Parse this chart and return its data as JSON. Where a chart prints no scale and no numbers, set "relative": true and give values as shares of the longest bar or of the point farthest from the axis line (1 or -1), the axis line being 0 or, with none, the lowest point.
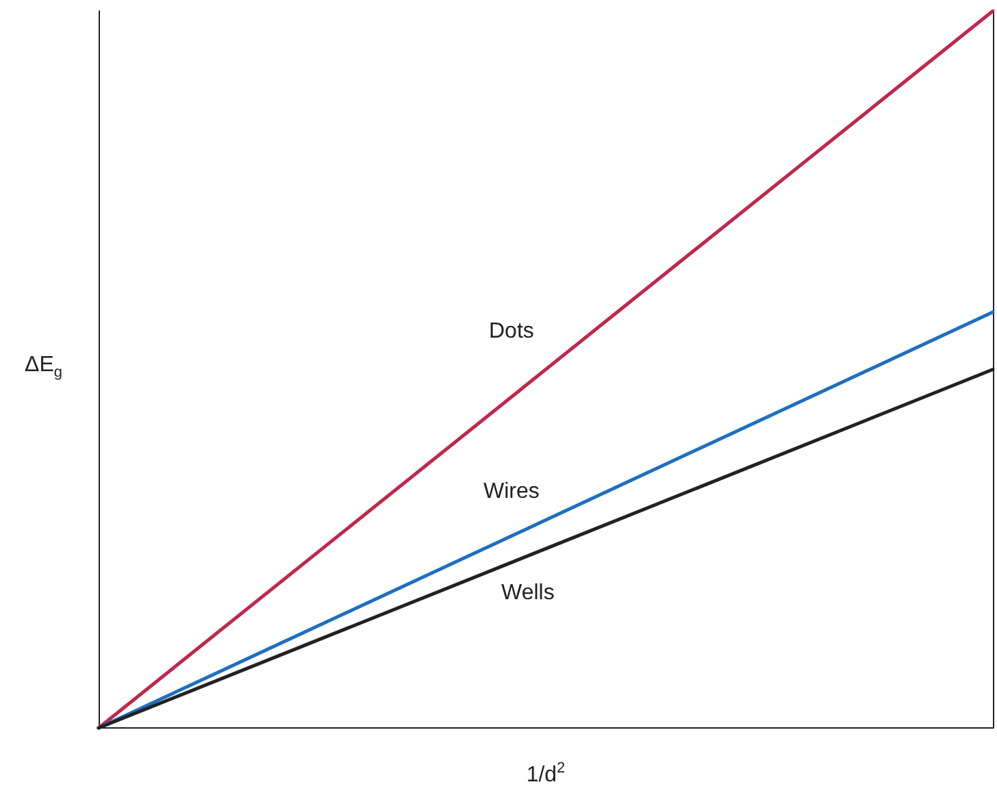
{
  "chart_data": {
    "type": "line",
    "relative": true,
    "xlabel": "1/d$^{2}$",
    "ylabel": "ΔE$_{g}$",
    "categories": [
      null,
      null
    ],
    "grid": false,
    "legend": false,
    "marker": "none",
    "line_style": "solid",
    "series": [
      {
        "name": "Dots",
        "color": "#c0284a",
        "values": [
          0,
          1
        ]
      },
      {
        "name": "Wires",
        "color": "#1f6fbf",
        "values": [
          0,
          0.58
        ]
      },
      {
        "name": "Wells",
        "color": "#222222",
        "values": [
          0,
          0.5
        ]
      }
    ]
  }
}
